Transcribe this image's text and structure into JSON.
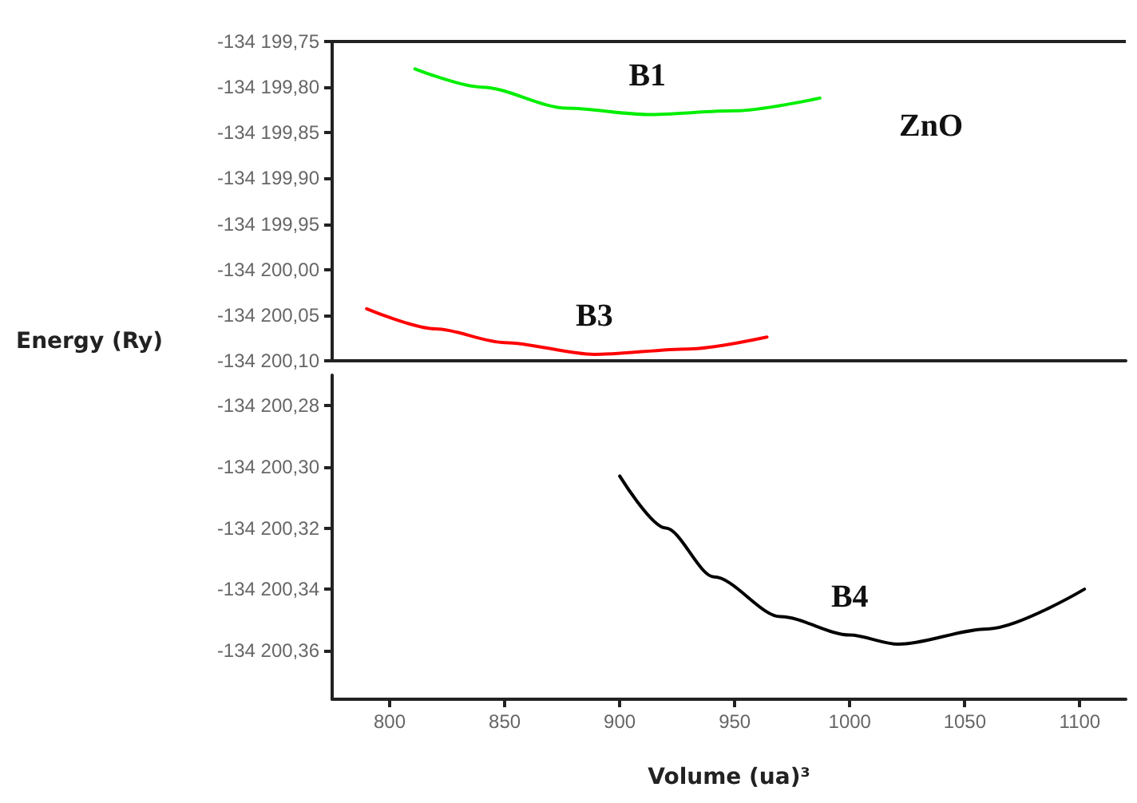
{
  "chart_data": [
    {
      "type": "line",
      "ylabel": "Energy (Ry)",
      "xlim": [
        775,
        1120
      ],
      "ylim": [
        -134200.1,
        -134199.75
      ],
      "tick_labels": "y",
      "grid": false,
      "marker": "none",
      "line_style": "solid",
      "yticks": [
        {
          "value": -134199.75,
          "label": "-134 199,75"
        },
        {
          "value": -134199.8,
          "label": "-134 199,80"
        },
        {
          "value": -134199.85,
          "label": "-134 199,85"
        },
        {
          "value": -134199.9,
          "label": "-134 199,90"
        },
        {
          "value": -134199.95,
          "label": "-134 199,95"
        },
        {
          "value": -134200,
          "label": "-134 200,00"
        },
        {
          "value": -134200.05,
          "label": "-134 200,05"
        },
        {
          "value": -134200.1,
          "label": "-134 200,10"
        }
      ],
      "series": [
        {
          "name": "B1",
          "color": "#00ee00",
          "x": [
            811,
            840,
            877,
            912,
            950,
            987
          ],
          "values": [
            -134199.78,
            -134199.8,
            -134199.823,
            -134199.83,
            -134199.826,
            -134199.812
          ]
        },
        {
          "name": "B3",
          "color": "#ff0000",
          "x": [
            790,
            820,
            850,
            889,
            930,
            964
          ],
          "values": [
            -134200.043,
            -134200.065,
            -134200.08,
            -134200.093,
            -134200.087,
            -134200.074
          ]
        }
      ],
      "annotations": [
        "ZnO"
      ]
    },
    {
      "type": "line",
      "xlabel": "Volume (ua)³",
      "xlim": [
        775,
        1120
      ],
      "ylim": [
        -134200.376,
        -134200.27
      ],
      "grid": false,
      "marker": "none",
      "line_style": "solid",
      "xticks": [
        800,
        850,
        900,
        950,
        1000,
        1050,
        1100
      ],
      "yticks": [
        {
          "value": -134200.28,
          "label": "-134 200,28"
        },
        {
          "value": -134200.3,
          "label": "-134 200,30"
        },
        {
          "value": -134200.32,
          "label": "-134 200,32"
        },
        {
          "value": -134200.34,
          "label": "-134 200,34"
        },
        {
          "value": -134200.36,
          "label": "-134 200,36"
        }
      ],
      "series": [
        {
          "name": "B4",
          "color": "#000000",
          "x": [
            900,
            920,
            941,
            970,
            1000,
            1021,
            1060,
            1102
          ],
          "values": [
            -134200.303,
            -134200.32,
            -134200.336,
            -134200.349,
            -134200.355,
            -134200.358,
            -134200.353,
            -134200.34
          ]
        }
      ]
    }
  ]
}
